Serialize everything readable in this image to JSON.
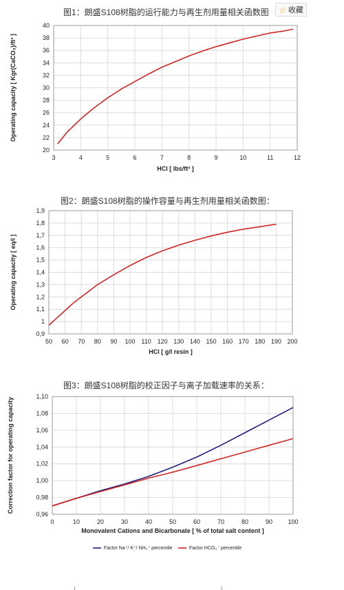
{
  "favorite": {
    "icon": "star-icon",
    "label": "收藏"
  },
  "chart_data": [
    {
      "type": "line",
      "title": "图1：朗盛S108树脂的运行能力与再生剂用量相关函数图",
      "xlabel": "HCl [ lbs/ft³ ]",
      "ylabel": "Operating capacity [ Kgr(CaCO₃)/ft³ ]",
      "xlim": [
        3,
        12
      ],
      "ylim": [
        20,
        40
      ],
      "xticks": [
        "3",
        "4",
        "5",
        "6",
        "7",
        "8",
        "9",
        "10",
        "11",
        "12"
      ],
      "yticks": [
        "20",
        "22",
        "24",
        "26",
        "28",
        "30",
        "32",
        "34",
        "36",
        "38",
        "40"
      ],
      "grid": true,
      "color": "#d02424",
      "series": [
        {
          "x": [
            3.15,
            3.5,
            4,
            4.5,
            5,
            5.5,
            6,
            6.5,
            7,
            7.5,
            8,
            8.5,
            9,
            9.5,
            10,
            10.5,
            11,
            11.5,
            11.85
          ],
          "y": [
            21.0,
            22.9,
            25.0,
            26.8,
            28.4,
            29.8,
            31.0,
            32.2,
            33.3,
            34.2,
            35.1,
            35.9,
            36.6,
            37.2,
            37.8,
            38.3,
            38.8,
            39.1,
            39.4
          ]
        }
      ]
    },
    {
      "type": "line",
      "title": "图2：朗盛S108树脂的操作容量与再生剂用量相关函数图：",
      "xlabel": "HCl [ g/l resin ]",
      "ylabel": "Operating capacity [ eq/l ]",
      "xlim": [
        50,
        200
      ],
      "ylim": [
        0.9,
        1.9
      ],
      "xticks": [
        "50",
        "60",
        "70",
        "80",
        "90",
        "100",
        "110",
        "120",
        "130",
        "140",
        "150",
        "160",
        "170",
        "180",
        "190",
        "200"
      ],
      "yticks": [
        "0,9",
        "1",
        "1,1",
        "1,2",
        "1,3",
        "1,4",
        "1,5",
        "1,6",
        "1,7",
        "1,8",
        "1,9"
      ],
      "grid": true,
      "color": "#d02424",
      "series": [
        {
          "x": [
            50,
            55,
            60,
            65,
            70,
            80,
            90,
            100,
            110,
            120,
            130,
            140,
            150,
            160,
            170,
            180,
            190
          ],
          "y": [
            0.97,
            1.03,
            1.09,
            1.15,
            1.2,
            1.3,
            1.38,
            1.455,
            1.52,
            1.575,
            1.62,
            1.66,
            1.695,
            1.725,
            1.75,
            1.77,
            1.79
          ]
        }
      ]
    },
    {
      "type": "line",
      "title": "图3：朗盛S108树脂的校正因子与离子加载速率的关系：",
      "xlabel": "Monovalent Cations and Bicarbonate [ % of total salt content ]",
      "ylabel": "Correction factor for operating capacity",
      "xlim": [
        0,
        100
      ],
      "ylim": [
        0.96,
        1.1
      ],
      "xticks": [
        "0",
        "10",
        "20",
        "30",
        "40",
        "50",
        "60",
        "70",
        "80",
        "90",
        "100"
      ],
      "yticks": [
        "0,96",
        "0,98",
        "1,00",
        "1,02",
        "1,04",
        "1,06",
        "1,08",
        "1,10"
      ],
      "grid": true,
      "legend": "bottom",
      "series": [
        {
          "name": "Factor Na⁺/ K⁺/ NH₄⁺ percentile",
          "color": "#1c1f7a",
          "x": [
            0,
            10,
            20,
            30,
            40,
            50,
            60,
            70,
            80,
            90,
            100
          ],
          "y": [
            0.97,
            0.979,
            0.988,
            0.996,
            1.005,
            1.016,
            1.028,
            1.042,
            1.057,
            1.072,
            1.087
          ]
        },
        {
          "name": "Factor HCO₃⁻ percentile",
          "color": "#d02424",
          "x": [
            0,
            10,
            20,
            30,
            40,
            50,
            60,
            70,
            80,
            90,
            100
          ],
          "y": [
            0.97,
            0.979,
            0.987,
            0.995,
            1.003,
            1.01,
            1.018,
            1.026,
            1.034,
            1.042,
            1.05
          ]
        }
      ]
    }
  ]
}
